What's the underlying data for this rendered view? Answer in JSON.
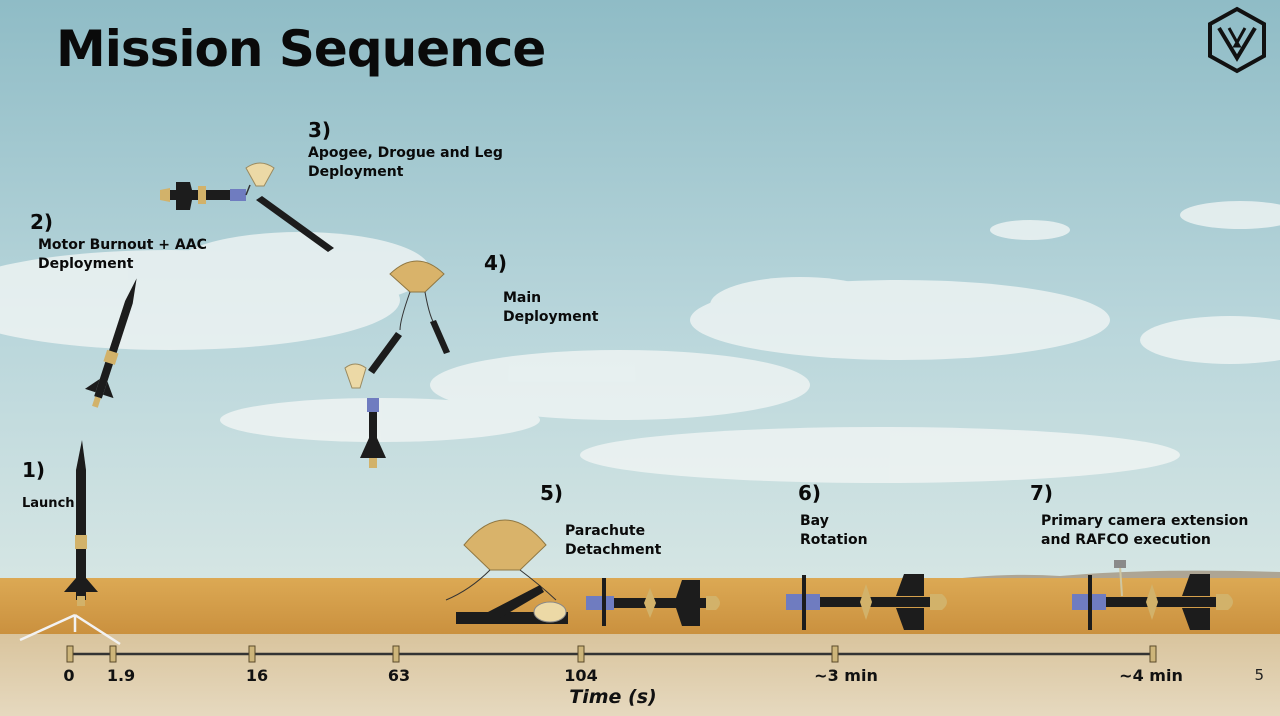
{
  "title": "Mission Sequence",
  "page_number": "5",
  "steps": [
    {
      "num": "1)",
      "label": "Launch"
    },
    {
      "num": "2)",
      "label": "Motor Burnout + AAC\nDeployment"
    },
    {
      "num": "3)",
      "label": "Apogee, Drogue and Leg\nDeployment"
    },
    {
      "num": "4)",
      "label": "Main\nDeployment"
    },
    {
      "num": "5)",
      "label": "Parachute\nDetachment"
    },
    {
      "num": "6)",
      "label": "Bay\nRotation"
    },
    {
      "num": "7)",
      "label": "Primary camera extension\nand RAFCO execution"
    }
  ],
  "timeline": {
    "axis_title": "Time (s)",
    "ticks": [
      "0",
      "1.9",
      "16",
      "63",
      "104",
      "~3 min",
      "~4 min"
    ]
  },
  "colors": {
    "sky_top": "#93bfc7",
    "sky_bottom": "#cfe3e4",
    "desert": "#d9a54e",
    "ground": "#d8c6a2",
    "rocket_body": "#1c1c1c",
    "nose_tan": "#d2b26a",
    "bay_blue": "#6f7cc0",
    "chute_tan": "#d9b36a"
  },
  "icons": [
    "hexagon-logo-icon"
  ]
}
